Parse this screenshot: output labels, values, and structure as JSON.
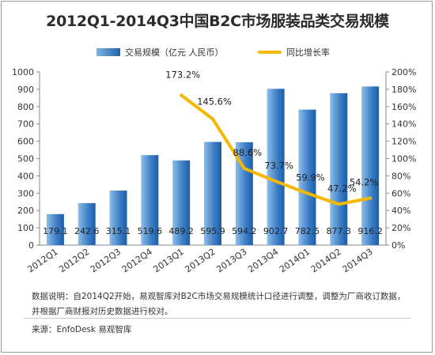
{
  "title": "2012Q1-2014Q3中国B2C市场服装品类交易规模",
  "legend": {
    "bar_label": "交易规模（亿元 人民币）",
    "line_label": "同比增长率"
  },
  "note": "数据说明：自2014Q2开始，易观智库对B2C市场交易规模统计口径进行调整，调整为厂商收订数据，并根据厂商财报对历史数据进行校对。",
  "source": "来源：EnfoDesk 易观智库",
  "colors": {
    "bar_top": "#5a97d3",
    "bar_bottom": "#1e5fae",
    "line": "#f5b800"
  },
  "chart_data": {
    "type": "bar",
    "title": "2012Q1-2014Q3中国B2C市场服装品类交易规模",
    "categories": [
      "2012Q1",
      "2012Q2",
      "2012Q3",
      "2012Q4",
      "2013Q1",
      "2013Q2",
      "2013Q3",
      "2013Q4",
      "2014Q1",
      "2014Q2",
      "2014Q3"
    ],
    "series": [
      {
        "name": "交易规模（亿元 人民币）",
        "type": "bar",
        "axis": "left",
        "values": [
          179.1,
          242.6,
          315.1,
          519.6,
          489.2,
          595.9,
          594.2,
          902.7,
          782.5,
          877.3,
          916.2
        ],
        "labels": [
          "179.1",
          "242.6",
          "315.1",
          "519.6",
          "489.2",
          "595.9",
          "594.2",
          "902.7",
          "782.5",
          "877.3",
          "916.2"
        ]
      },
      {
        "name": "同比增长率",
        "type": "line",
        "axis": "right",
        "values": [
          null,
          null,
          null,
          null,
          173.2,
          145.6,
          88.6,
          73.7,
          59.9,
          47.2,
          54.2
        ],
        "labels": [
          "",
          "",
          "",
          "",
          "173.2%",
          "145.6%",
          "88.6%",
          "73.7%",
          "59.9%",
          "47.2%",
          "54.2%"
        ]
      }
    ],
    "y_left": {
      "min": 0,
      "max": 1000,
      "ticks": [
        "0",
        "100",
        "200",
        "300",
        "400",
        "500",
        "600",
        "700",
        "800",
        "900",
        "1000"
      ]
    },
    "y_right": {
      "min": 0,
      "max": 200,
      "ticks": [
        "0%",
        "20%",
        "40%",
        "60%",
        "80%",
        "100%",
        "120%",
        "140%",
        "160%",
        "180%",
        "200%"
      ]
    },
    "grid": false,
    "legend_position": "top"
  }
}
